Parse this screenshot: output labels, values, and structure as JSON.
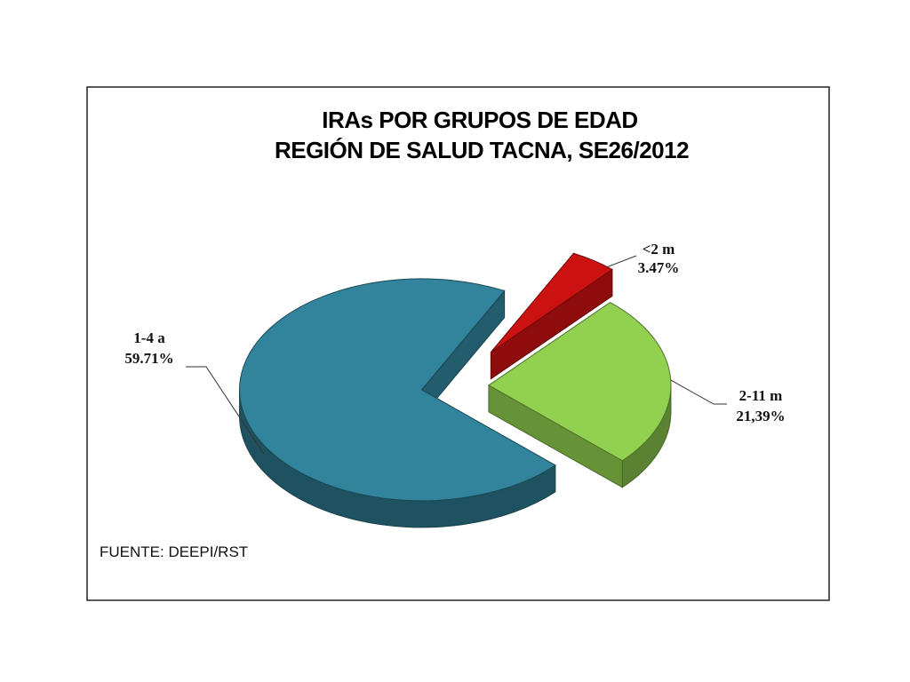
{
  "chart_data": {
    "type": "pie",
    "title": "IRAs POR GRUPOS DE EDAD",
    "subtitle": "REGIÓN DE SALUD TACNA,  SE26/2012",
    "categories": [
      "<2 m",
      "2-11 m",
      "1-4 a"
    ],
    "values": [
      3.47,
      21.39,
      59.71
    ],
    "value_labels": [
      "3.47%",
      "21,39%",
      "59.71%"
    ],
    "colors": [
      "#cc1111",
      "#92d050",
      "#31849b"
    ],
    "style": "3d-exploded",
    "legend": "none",
    "source": "FUENTE: DEEPI/RST"
  }
}
